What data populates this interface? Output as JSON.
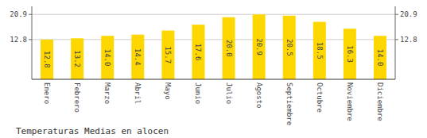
{
  "chart_data": {
    "type": "bar",
    "title": "Temperaturas Medias en alocen",
    "categories": [
      "Enero",
      "Febrero",
      "Marzo",
      "Abril",
      "Mayo",
      "Junio",
      "Julio",
      "Agosto",
      "Septiembre",
      "Octubre",
      "Noviembre",
      "Diciembre"
    ],
    "values": [
      12.8,
      13.2,
      14.0,
      14.4,
      15.7,
      17.6,
      20.0,
      20.9,
      20.5,
      18.5,
      16.3,
      14.0
    ],
    "value_labels": [
      "12.8",
      "13.2",
      "14.0",
      "14.4",
      "15.7",
      "17.6",
      "20.0",
      "20.9",
      "20.5",
      "18.5",
      "16.3",
      "14.0"
    ],
    "color": "#FFD700",
    "ylim": [
      0,
      23.5
    ],
    "yticks": [
      12.8,
      20.9
    ],
    "y2lim": [
      0,
      23.5
    ],
    "y2ticks": [
      12.8,
      20.9
    ],
    "grid": true,
    "data_labels": true
  }
}
